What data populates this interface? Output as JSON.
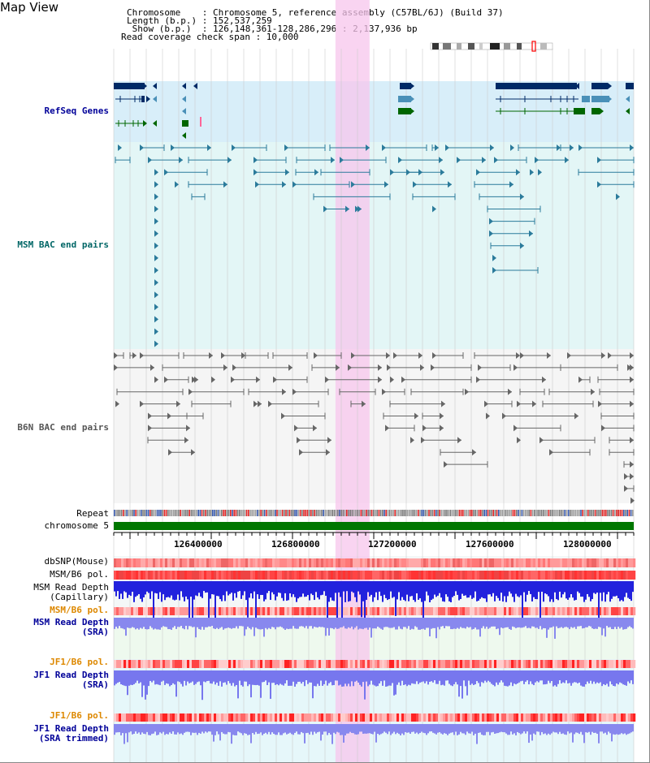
{
  "view": {
    "title": "Map View"
  },
  "header": {
    "chrom_line": "Chromosome    : Chromosome 5, reference assembly (C57BL/6J) (Build 37)",
    "length_line": "Length (b.p.) : 152,537,259",
    "show_line": " Show (b.p.)  : 126,148,361-128,286,296 : 2,137,936 bp",
    "coverage_line": "Read coverage check span : 10,000"
  },
  "region": {
    "start": 126148361,
    "end": 128286296
  },
  "highlight_region": {
    "start": 127060000,
    "end": 127200000
  },
  "tracks": {
    "refseq": "RefSeq Genes",
    "msm_bac": "MSM BAC end pairs",
    "b6n_bac": "B6N BAC end pairs",
    "repeat": "Repeat",
    "chromosome": "chromosome 5",
    "dbsnp": "dbSNP(Mouse)",
    "msm_b6_pol": "MSM/B6 pol.",
    "msm_depth_cap_1": "MSM Read Depth",
    "msm_depth_cap_2": "(Capillary)",
    "msm_b6_pol2": "MSM/B6 pol.",
    "msm_depth_sra_1": "MSM Read Depth",
    "msm_depth_sra_2": "(SRA)",
    "jf1_b6_pol": "JF1/B6 pol.",
    "jf1_depth_1": "JF1 Read Depth",
    "jf1_depth_2": "(SRA)",
    "jf1_b6_pol2": "JF1/B6 pol.",
    "jf1_trim_1": "JF1 Read Depth",
    "jf1_trim_2": "(SRA trimmed)"
  },
  "axis_ticks": [
    "126400000",
    "126800000",
    "127200000",
    "127600000",
    "128000000"
  ],
  "colors": {
    "gene_navy": "#002a66",
    "gene_teal": "#4a90b8",
    "gene_green": "#006600",
    "bac_teal": "#2b7b9b",
    "bac_gray": "#666666",
    "highlight": "#f7c6ec"
  }
}
